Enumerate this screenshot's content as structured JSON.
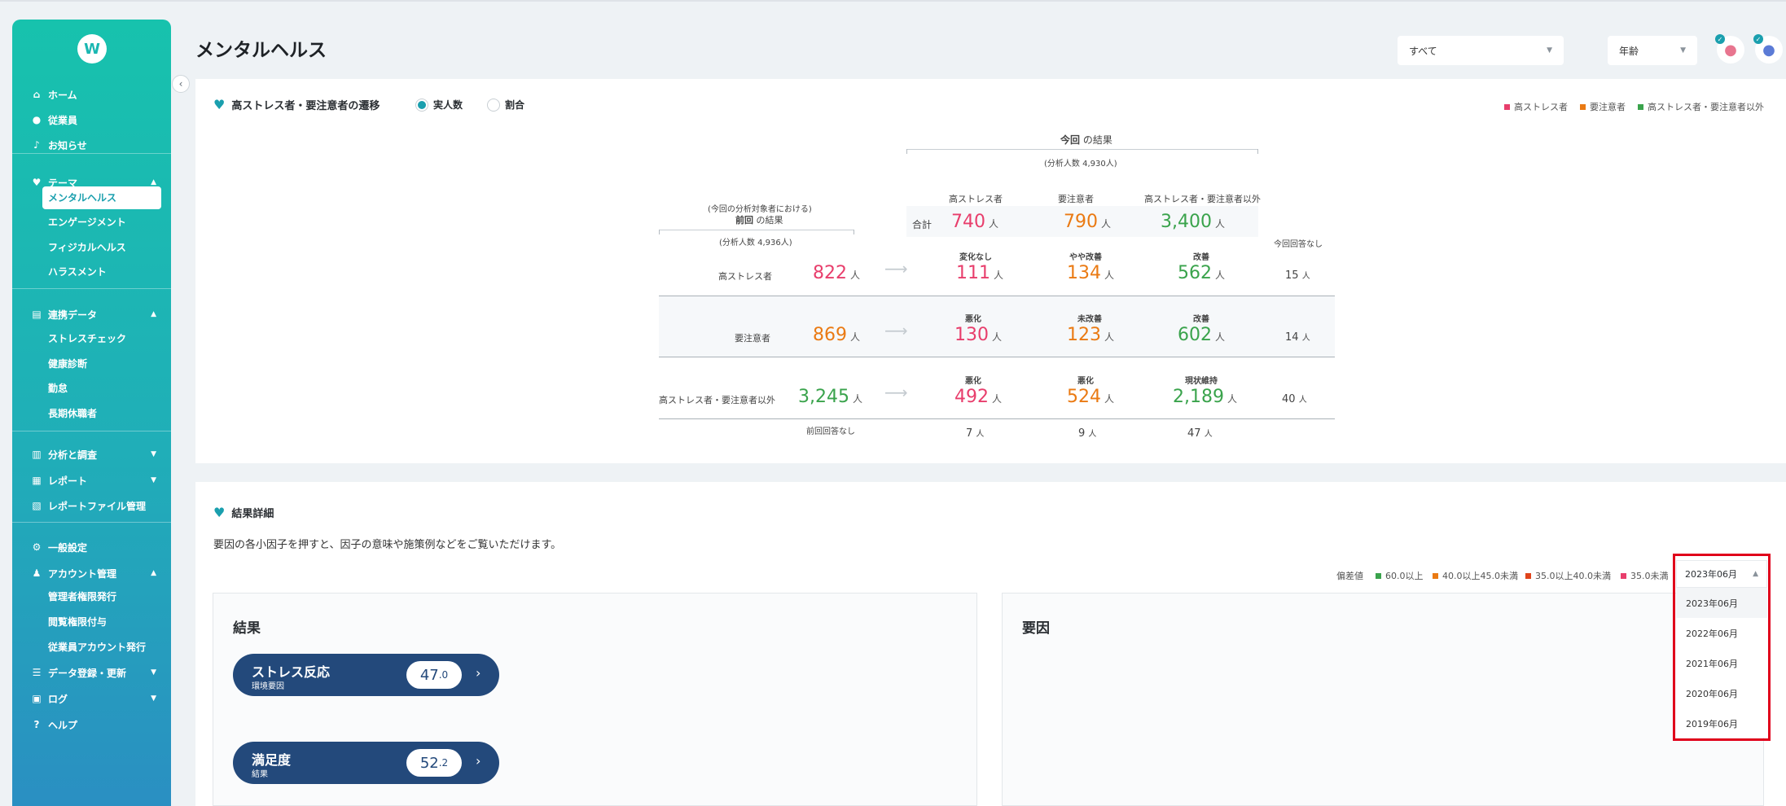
{
  "app": {
    "logo_text": "W"
  },
  "sidebar": {
    "items": [
      {
        "label": "ホーム",
        "icon": "home-icon",
        "glyph": "⌂"
      },
      {
        "label": "従業員",
        "icon": "user-icon",
        "glyph": "👤"
      },
      {
        "label": "お知らせ",
        "icon": "bell-icon",
        "glyph": "🔔"
      },
      {
        "label": "テーマ",
        "icon": "heart-icon",
        "glyph": "♥"
      },
      {
        "label": "連携データ",
        "icon": "data-icon",
        "glyph": "▤"
      },
      {
        "label": "分析と調査",
        "icon": "bar-chart-icon",
        "glyph": "▥"
      },
      {
        "label": "レポート",
        "icon": "report-icon",
        "glyph": "▦"
      },
      {
        "label": "レポートファイル管理",
        "icon": "file-icon",
        "glyph": "▧"
      },
      {
        "label": "一般設定",
        "icon": "settings-icon",
        "glyph": "⚙"
      },
      {
        "label": "アカウント管理",
        "icon": "account-icon",
        "glyph": "👥"
      },
      {
        "label": "データ登録・更新",
        "icon": "database-icon",
        "glyph": "☰"
      },
      {
        "label": "ログ",
        "icon": "log-icon",
        "glyph": "▣"
      },
      {
        "label": "ヘルプ",
        "icon": "help-icon",
        "glyph": "?"
      }
    ],
    "theme_sub": [
      "メンタルヘルス",
      "エンゲージメント",
      "フィジカルヘルス",
      "ハラスメント"
    ],
    "data_sub": [
      "ストレスチェック",
      "健康診断",
      "勤怠",
      "長期休職者"
    ],
    "account_sub": [
      "管理者権限発行",
      "閲覧権限付与",
      "従業員アカウント発行"
    ]
  },
  "header": {
    "title": "メンタルヘルス",
    "filter_select": "すべて",
    "age_select": "年齢"
  },
  "transition": {
    "title": "高ストレス者・要注意者の遷移",
    "radio_actual": "実人数",
    "radio_ratio": "割合",
    "legend": [
      {
        "label": "高ストレス者",
        "color": "#e83e6c"
      },
      {
        "label": "要注意者",
        "color": "#ea7a13"
      },
      {
        "label": "高ストレス者・要注意者以外",
        "color": "#3aa34c"
      }
    ],
    "current_label": "今回",
    "current_suffix": "の結果",
    "current_count": "(分析人数 4,930人)",
    "prev_note": "(今回の分析対象者における)",
    "prev_label": "前回",
    "prev_suffix": "の結果",
    "prev_count": "(分析人数 4,936人)",
    "col_headers": [
      "高ストレス者",
      "要注意者",
      "高ストレス者・要注意者以外"
    ],
    "total_label": "合計",
    "totals": [
      "740",
      "790",
      "3,400"
    ],
    "unit": "人",
    "no_answer_now": "今回回答なし",
    "no_answer_prev": "前回回答なし",
    "rows": [
      {
        "label": "高ストレス者",
        "value": "822",
        "cells": [
          {
            "tag": "変化なし",
            "value": "111"
          },
          {
            "tag": "やや改善",
            "value": "134"
          },
          {
            "tag": "改善",
            "value": "562"
          }
        ],
        "no_answer": "15"
      },
      {
        "label": "要注意者",
        "value": "869",
        "cells": [
          {
            "tag": "悪化",
            "value": "130"
          },
          {
            "tag": "未改善",
            "value": "123"
          },
          {
            "tag": "改善",
            "value": "602"
          }
        ],
        "no_answer": "14"
      },
      {
        "label": "高ストレス者・要注意者以外",
        "value": "3,245",
        "cells": [
          {
            "tag": "悪化",
            "value": "492"
          },
          {
            "tag": "悪化",
            "value": "524"
          },
          {
            "tag": "現状維持",
            "value": "2,189"
          }
        ],
        "no_answer": "40"
      }
    ],
    "prev_no_answer": [
      "7",
      "9",
      "47"
    ]
  },
  "details": {
    "title": "結果詳細",
    "description": "要因の各小因子を押すと、因子の意味や施策例などをご覧いただけます。",
    "deviation_label": "偏差値",
    "deviation_legend": [
      {
        "label": "60.0以上",
        "color": "#3aa34c"
      },
      {
        "label": "40.0以上45.0未満",
        "color": "#ea7a13"
      },
      {
        "label": "35.0以上40.0未満",
        "color": "#e0441b"
      },
      {
        "label": "35.0未満",
        "color": "#e83e6c"
      }
    ],
    "result_title": "結果",
    "factor_title": "要因",
    "pills": [
      {
        "name": "ストレス反応",
        "sub": "環境要因",
        "score_int": "47",
        "score_dec": ".0"
      },
      {
        "name": "満足度",
        "sub": "結果",
        "score_int": "52",
        "score_dec": ".2"
      }
    ]
  },
  "period_dropdown": {
    "selected": "2023年06月",
    "options": [
      "2023年06月",
      "2022年06月",
      "2021年06月",
      "2020年06月",
      "2019年06月"
    ]
  }
}
